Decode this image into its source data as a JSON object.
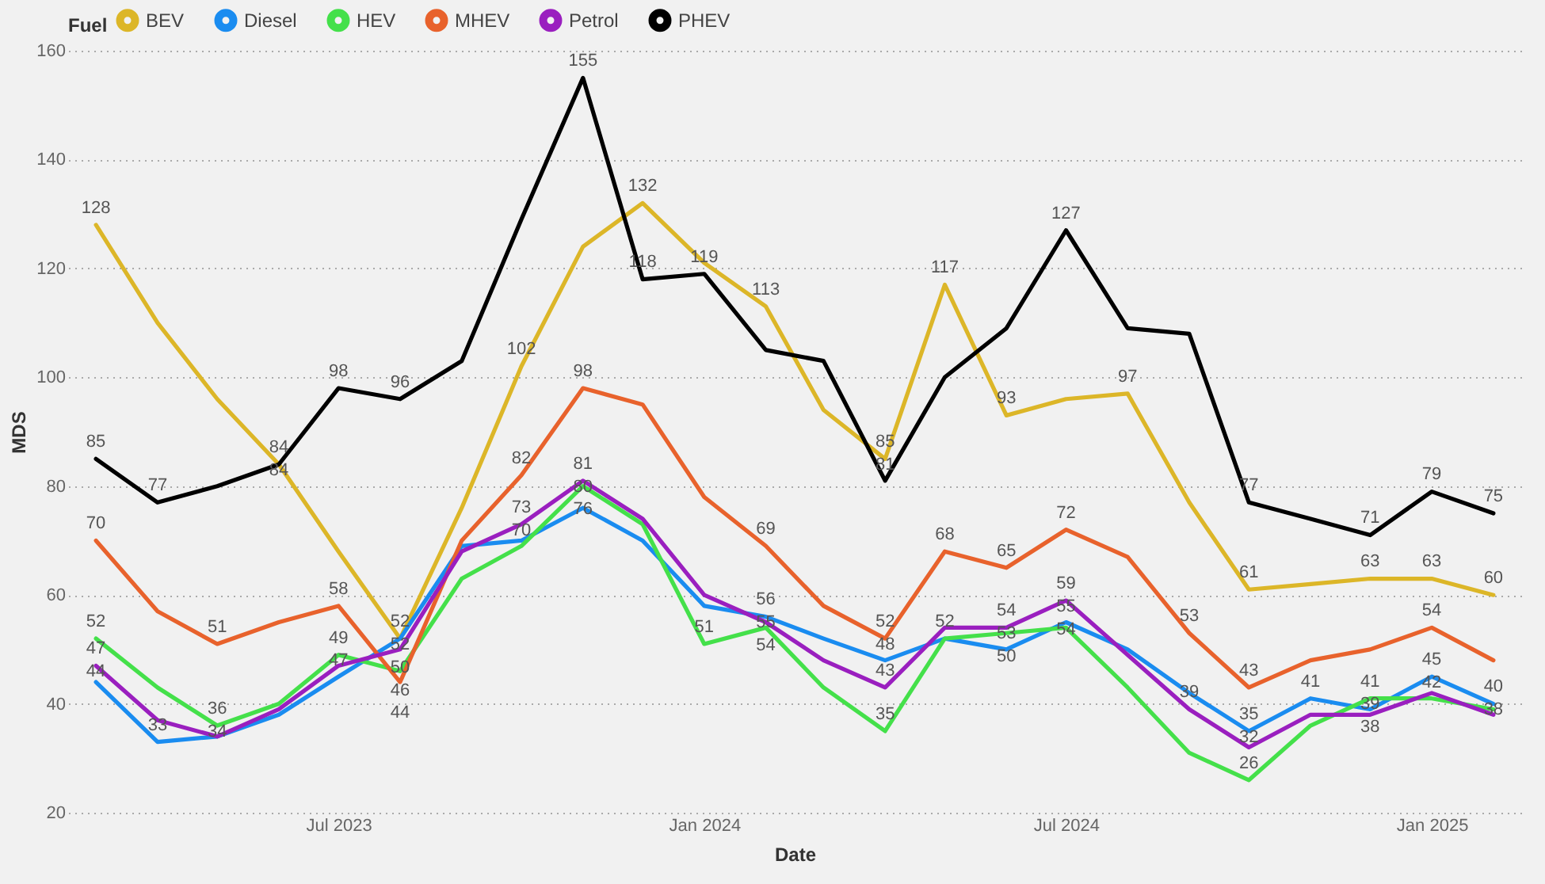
{
  "chart_data": {
    "type": "line",
    "xlabel": "Date",
    "ylabel": "MDS",
    "legend_title": "Fuel",
    "legend": "top left",
    "grid": "y",
    "marker": "none",
    "line_style": "solid",
    "x": [
      "2023-03",
      "2023-04",
      "2023-05",
      "2023-06",
      "2023-07",
      "2023-08",
      "2023-09",
      "2023-10",
      "2023-11",
      "2023-12",
      "2024-01",
      "2024-02",
      "2024-03",
      "2024-04",
      "2024-05",
      "2024-06",
      "2024-07",
      "2024-08",
      "2024-09",
      "2024-10",
      "2024-11",
      "2024-12",
      "2025-01",
      "2025-02"
    ],
    "xlim": [
      "2023-02-15",
      "2025-02-15"
    ],
    "xticks": [
      {
        "value": "2023-07",
        "label": "Jul 2023"
      },
      {
        "value": "2024-01",
        "label": "Jan 2024"
      },
      {
        "value": "2024-07",
        "label": "Jul 2024"
      },
      {
        "value": "2025-01",
        "label": "Jan 2025"
      }
    ],
    "ylim": [
      20,
      160
    ],
    "yticks": [
      20,
      40,
      60,
      80,
      100,
      120,
      140,
      160
    ],
    "series": [
      {
        "name": "BEV",
        "color": "#dcb628",
        "values": [
          128,
          110,
          96,
          84,
          68,
          52,
          76,
          102,
          124,
          132,
          121,
          113,
          94,
          85,
          117,
          93,
          96,
          97,
          77,
          61,
          62,
          63,
          63,
          60
        ],
        "value_labels": [
          "128",
          null,
          null,
          "84",
          null,
          "52",
          null,
          "102",
          null,
          "132",
          null,
          "113",
          null,
          "85",
          "117",
          "93",
          null,
          "97",
          null,
          "61",
          null,
          "63",
          "63",
          "60"
        ]
      },
      {
        "name": "Diesel",
        "color": "#1a8cf0",
        "values": [
          44,
          33,
          34,
          38,
          45,
          52,
          69,
          70,
          76,
          70,
          58,
          56,
          52,
          48,
          52,
          50,
          55,
          50,
          42,
          35,
          41,
          39,
          45,
          40
        ],
        "value_labels": [
          "44",
          "33",
          null,
          null,
          null,
          "52",
          null,
          "70",
          "76",
          null,
          null,
          "56",
          null,
          "48",
          "52",
          "50",
          "55",
          null,
          null,
          "35",
          "41",
          "39",
          "45",
          "40"
        ]
      },
      {
        "name": "HEV",
        "color": "#44e04a",
        "values": [
          52,
          43,
          36,
          40,
          49,
          46,
          63,
          69,
          80,
          73,
          51,
          54,
          43,
          35,
          52,
          53,
          54,
          43,
          31,
          26,
          36,
          41,
          41,
          39
        ],
        "value_labels": [
          "52",
          null,
          "36",
          null,
          "49",
          "46",
          null,
          null,
          "80",
          null,
          "51",
          "54",
          null,
          "35",
          null,
          "53",
          "54",
          null,
          null,
          "26",
          null,
          "41",
          null,
          null
        ]
      },
      {
        "name": "MHEV",
        "color": "#e8622c",
        "values": [
          70,
          57,
          51,
          55,
          58,
          44,
          70,
          82,
          98,
          95,
          78,
          69,
          58,
          52,
          68,
          65,
          72,
          67,
          53,
          43,
          48,
          50,
          54,
          48
        ],
        "value_labels": [
          "70",
          null,
          "51",
          null,
          "58",
          "44",
          null,
          "82",
          "98",
          null,
          null,
          "69",
          null,
          "52",
          "68",
          "65",
          "72",
          null,
          "53",
          "43",
          null,
          null,
          "54",
          null
        ]
      },
      {
        "name": "Petrol",
        "color": "#9a1fbf",
        "values": [
          47,
          37,
          34,
          39,
          47,
          50,
          68,
          73,
          81,
          74,
          60,
          55,
          48,
          43,
          54,
          54,
          59,
          49,
          39,
          32,
          38,
          38,
          42,
          38
        ],
        "value_labels": [
          "47",
          null,
          "34",
          null,
          "47",
          "50",
          null,
          "73",
          "81",
          null,
          null,
          "55",
          null,
          "43",
          null,
          "54",
          "59",
          null,
          "39",
          "32",
          null,
          "38",
          "42",
          "38"
        ]
      },
      {
        "name": "PHEV",
        "color": "#000000",
        "values": [
          85,
          77,
          80,
          84,
          98,
          96,
          103,
          129,
          155,
          118,
          119,
          105,
          103,
          81,
          100,
          109,
          127,
          109,
          108,
          77,
          74,
          71,
          79,
          75
        ],
        "value_labels": [
          "85",
          "77",
          null,
          "84",
          "98",
          "96",
          null,
          null,
          "155",
          "118",
          "119",
          null,
          null,
          "81",
          null,
          null,
          "127",
          null,
          null,
          "77",
          null,
          "71",
          "79",
          "75"
        ]
      }
    ]
  }
}
